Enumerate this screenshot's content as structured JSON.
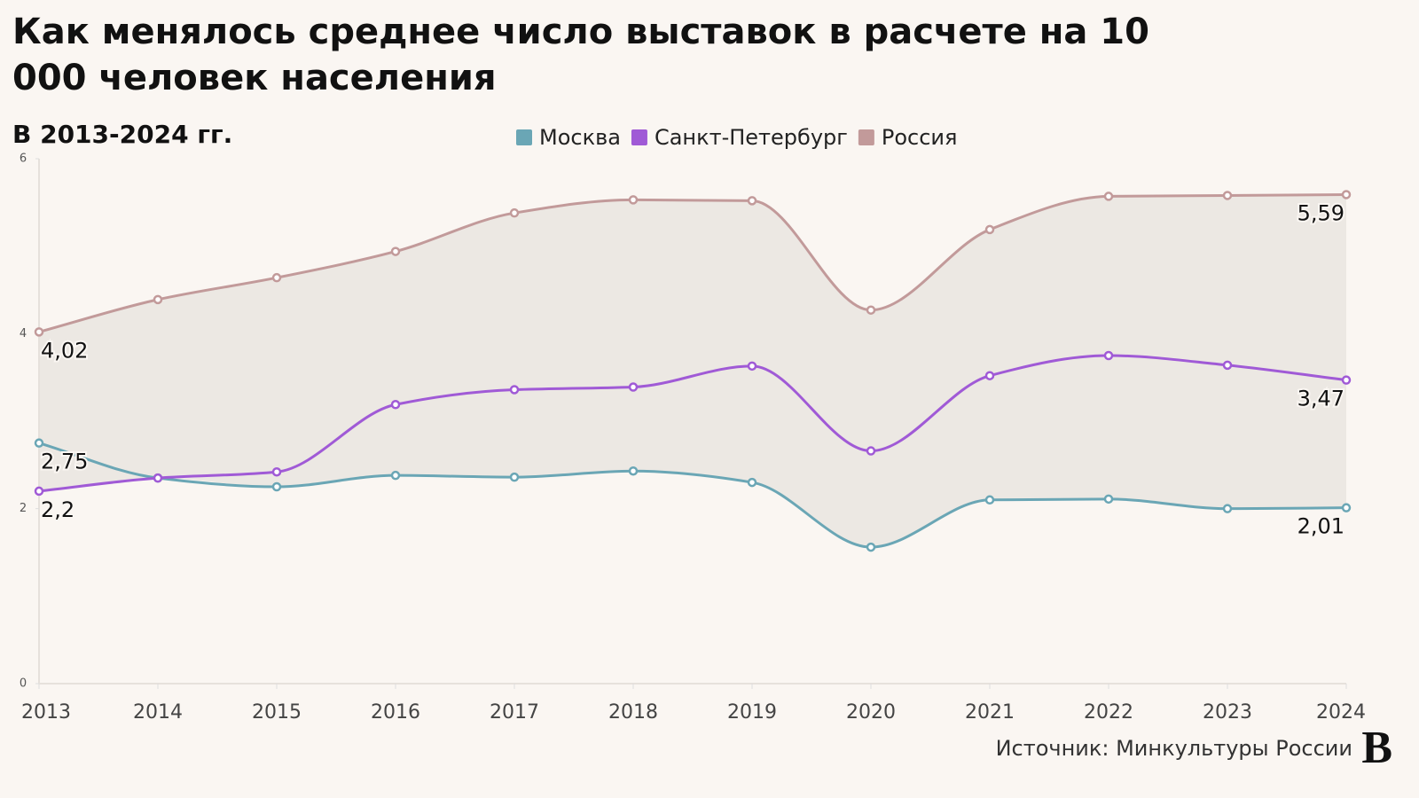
{
  "chart_data": {
    "type": "line",
    "title": "Как менялось среднее число выставок в расчете на 10 000 человек населения",
    "subtitle": "В 2013-2024 гг.",
    "source": "Источник: Минкультуры России",
    "logo": "В",
    "categories": [
      "2013",
      "2014",
      "2015",
      "2016",
      "2017",
      "2018",
      "2019",
      "2020",
      "2021",
      "2022",
      "2023",
      "2024"
    ],
    "series": [
      {
        "name": "Москва",
        "color": "#6aa6b5",
        "values": [
          2.75,
          2.35,
          2.25,
          2.38,
          2.36,
          2.43,
          2.3,
          1.56,
          2.1,
          2.11,
          2.0,
          2.01
        ],
        "value_labels": [
          "2,75",
          null,
          null,
          null,
          null,
          null,
          null,
          null,
          null,
          null,
          null,
          "2,01"
        ]
      },
      {
        "name": "Санкт-Петербург",
        "color": "#a05ad6",
        "values": [
          2.2,
          2.35,
          2.42,
          3.19,
          3.36,
          3.39,
          3.63,
          2.66,
          3.52,
          3.75,
          3.64,
          3.47
        ],
        "value_labels": [
          "2,2",
          null,
          null,
          null,
          null,
          null,
          null,
          null,
          null,
          null,
          null,
          "3,47"
        ]
      },
      {
        "name": "Россия",
        "color": "#c29a9a",
        "values": [
          4.02,
          4.39,
          4.64,
          4.94,
          5.38,
          5.53,
          5.52,
          4.27,
          5.19,
          5.57,
          5.58,
          5.59
        ],
        "value_labels": [
          "4,02",
          null,
          null,
          null,
          null,
          null,
          null,
          null,
          null,
          null,
          null,
          "5,59"
        ]
      }
    ],
    "ylim": [
      0,
      6
    ],
    "yticks": [
      0,
      2,
      4,
      6
    ],
    "band_color": "#ece8e3"
  }
}
